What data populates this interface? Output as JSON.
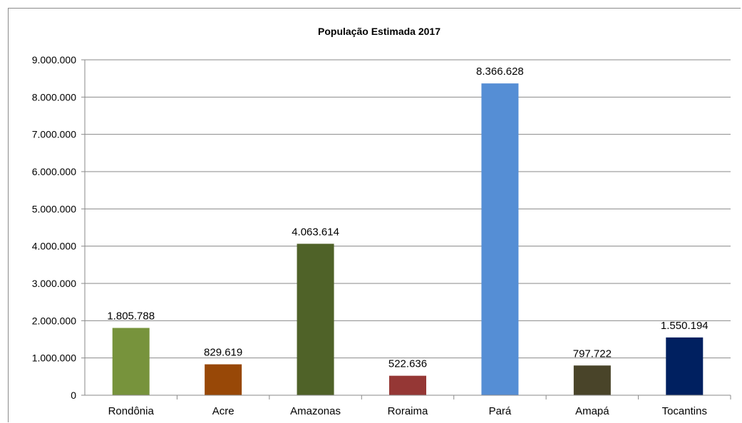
{
  "chart_data": {
    "type": "bar",
    "title": "População Estimada 2017",
    "xlabel": "",
    "ylabel": "",
    "categories": [
      "Rondônia",
      "Acre",
      "Amazonas",
      "Roraima",
      "Pará",
      "Amapá",
      "Tocantins"
    ],
    "values": [
      1805788,
      829619,
      4063614,
      522636,
      8366628,
      797722,
      1550194
    ],
    "value_labels": [
      "1.805.788",
      "829.619",
      "4.063.614",
      "522.636",
      "8.366.628",
      "797.722",
      "1.550.194"
    ],
    "colors": [
      "#77933c",
      "#984807",
      "#4f6228",
      "#953735",
      "#558ed5",
      "#494429",
      "#002060"
    ],
    "ylim": [
      0,
      9000000
    ],
    "yticks": [
      0,
      1000000,
      2000000,
      3000000,
      4000000,
      5000000,
      6000000,
      7000000,
      8000000,
      9000000
    ],
    "ytick_labels": [
      "0",
      "1.000.000",
      "2.000.000",
      "3.000.000",
      "4.000.000",
      "5.000.000",
      "6.000.000",
      "7.000.000",
      "8.000.000",
      "9.000.000"
    ],
    "grid": true,
    "legend": "none"
  }
}
